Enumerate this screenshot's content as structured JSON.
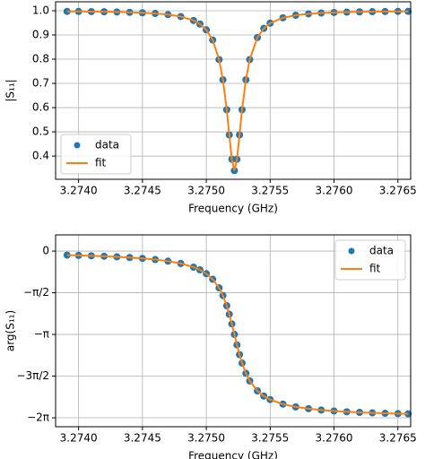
{
  "chart_data": [
    {
      "type": "line",
      "xlabel": "Frequency (GHz)",
      "ylabel": "|S₁₁|",
      "x": [
        3.27391,
        3.274,
        3.2741,
        3.2742,
        3.2743,
        3.2744,
        3.2745,
        3.2746,
        3.2747,
        3.2748,
        3.2749,
        3.27495,
        3.275,
        3.27505,
        3.2751,
        3.27513,
        3.27516,
        3.27518,
        3.2752,
        3.27522,
        3.27524,
        3.27526,
        3.27528,
        3.27531,
        3.27534,
        3.2754,
        3.27545,
        3.2755,
        3.2756,
        3.2757,
        3.2758,
        3.2759,
        3.276,
        3.2761,
        3.2762,
        3.2763,
        3.2764,
        3.2765,
        3.27658
      ],
      "series": [
        {
          "name": "data",
          "color": "#1f77b4",
          "style": "dots",
          "values": [
            0.9974,
            0.997,
            0.9965,
            0.9958,
            0.9948,
            0.9935,
            0.9916,
            0.9887,
            0.9841,
            0.976,
            0.9599,
            0.9452,
            0.9213,
            0.8792,
            0.7984,
            0.715,
            0.5914,
            0.4873,
            0.3867,
            0.34,
            0.3867,
            0.4873,
            0.5914,
            0.715,
            0.7984,
            0.8896,
            0.9271,
            0.9487,
            0.9709,
            0.9814,
            0.9872,
            0.9906,
            0.9928,
            0.9943,
            0.9954,
            0.9962,
            0.9968,
            0.9973,
            0.9976
          ]
        },
        {
          "name": "fit",
          "color": "#ff7f0e",
          "style": "line",
          "values": [
            0.9974,
            0.997,
            0.9965,
            0.9958,
            0.9948,
            0.9935,
            0.9916,
            0.9887,
            0.9841,
            0.976,
            0.9599,
            0.9452,
            0.9213,
            0.8792,
            0.7984,
            0.715,
            0.5914,
            0.4873,
            0.3867,
            0.34,
            0.3867,
            0.4873,
            0.5914,
            0.715,
            0.7984,
            0.8896,
            0.9271,
            0.9487,
            0.9709,
            0.9814,
            0.9872,
            0.9906,
            0.9928,
            0.9943,
            0.9954,
            0.9962,
            0.9968,
            0.9973,
            0.9976
          ]
        }
      ],
      "xlim": [
        3.27382,
        3.2766
      ],
      "xticks": [
        {
          "value": 3.274,
          "label": "3.2740"
        },
        3.2745,
        {
          "value": 3.275,
          "label": "3.2750"
        },
        3.2755,
        {
          "value": 3.276,
          "label": "3.2760"
        },
        3.2765
      ],
      "ylim": [
        0.304,
        1.037
      ],
      "yticks": [
        0.4,
        0.5,
        0.6,
        0.7,
        0.8,
        0.9,
        {
          "value": 1,
          "label": "1.0"
        }
      ],
      "grid": true,
      "legend": "lower left"
    },
    {
      "type": "line",
      "xlabel": "Frequency (GHz)",
      "ylabel": "arg(S₁₁)",
      "x": [
        3.27391,
        3.274,
        3.2741,
        3.2742,
        3.2743,
        3.2744,
        3.2745,
        3.2746,
        3.2747,
        3.2748,
        3.2749,
        3.27495,
        3.275,
        3.27505,
        3.2751,
        3.27513,
        3.27516,
        3.27518,
        3.2752,
        3.27522,
        3.27524,
        3.27526,
        3.27528,
        3.27531,
        3.27534,
        3.2754,
        3.27545,
        3.2755,
        3.2756,
        3.2757,
        3.2758,
        3.2759,
        3.276,
        3.2761,
        3.2762,
        3.2763,
        3.2764,
        3.2765,
        3.27658
      ],
      "series": [
        {
          "name": "data",
          "color": "#1f77b4",
          "style": "dots",
          "values": [
            -0.1524,
            -0.1636,
            -0.178,
            -0.1954,
            -0.2166,
            -0.2426,
            -0.276,
            -0.3198,
            -0.38,
            -0.4674,
            -0.6058,
            -0.7094,
            -0.8532,
            -1.0634,
            -1.3894,
            -1.676,
            -2.0608,
            -2.3806,
            -2.7468,
            -3.1416,
            -3.5364,
            -3.9026,
            -4.2224,
            -4.6072,
            -4.8938,
            -5.269,
            -5.463,
            -5.5972,
            -5.7684,
            -5.8724,
            -5.9416,
            -5.9912,
            -6.0282,
            -6.0568,
            -6.0796,
            -6.0984,
            -6.1142,
            -6.1274,
            -6.1364
          ]
        },
        {
          "name": "fit",
          "color": "#ff7f0e",
          "style": "line",
          "values": [
            -0.1524,
            -0.1636,
            -0.178,
            -0.1954,
            -0.2166,
            -0.2426,
            -0.276,
            -0.3198,
            -0.38,
            -0.4674,
            -0.6058,
            -0.7094,
            -0.8532,
            -1.0634,
            -1.3894,
            -1.676,
            -2.0608,
            -2.3806,
            -2.7468,
            -3.1416,
            -3.5364,
            -3.9026,
            -4.2224,
            -4.6072,
            -4.8938,
            -5.269,
            -5.463,
            -5.5972,
            -5.7684,
            -5.8724,
            -5.9416,
            -5.9912,
            -6.0282,
            -6.0568,
            -6.0796,
            -6.0984,
            -6.1142,
            -6.1274,
            -6.1364
          ]
        }
      ],
      "xlim": [
        3.27382,
        3.2766
      ],
      "xticks": [
        {
          "value": 3.274,
          "label": "3.2740"
        },
        3.2745,
        {
          "value": 3.275,
          "label": "3.2750"
        },
        3.2755,
        {
          "value": 3.276,
          "label": "3.2760"
        },
        3.2765
      ],
      "ylim": [
        -6.62,
        0.61
      ],
      "yticks": [
        0,
        {
          "value": -1.5708,
          "label": "−π/2"
        },
        {
          "value": -3.1416,
          "label": "−π"
        },
        {
          "value": -4.7124,
          "label": "−3π/2"
        },
        {
          "value": -6.2832,
          "label": "−2π"
        }
      ],
      "grid": true,
      "legend": "upper right"
    }
  ]
}
